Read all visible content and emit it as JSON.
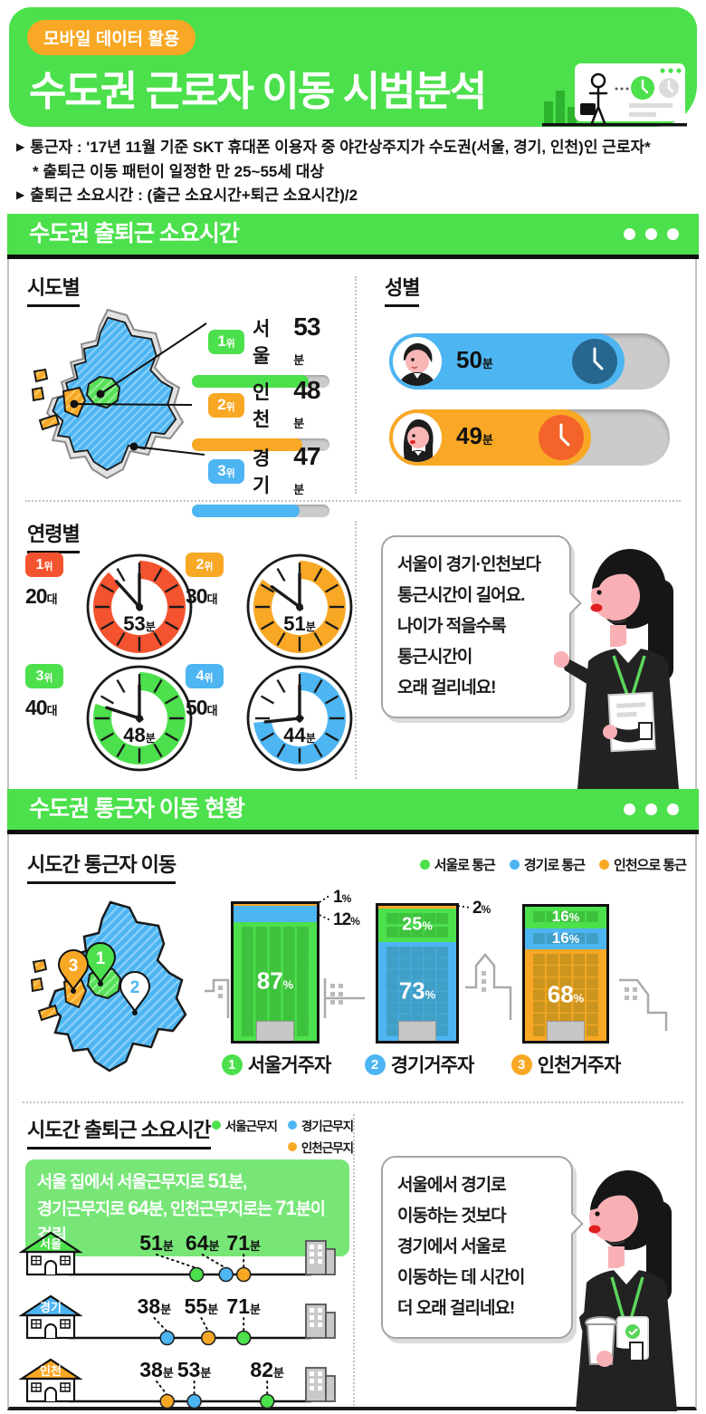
{
  "colors": {
    "green": "#4ce04c",
    "green_light": "#77e677",
    "blue": "#4db5f2",
    "orange": "#f8a825",
    "red": "#f4532f",
    "navy": "#27668f",
    "clock_orange": "#f4632a",
    "track": "#cbcbcb",
    "white": "#ffffff"
  },
  "banner": {
    "tag": "모바일 데이터 활용",
    "title": "수도권 근로자 이동 시범분석"
  },
  "notes": [
    {
      "marker": "▶",
      "text": "통근자 : '17년 11월 기준 SKT 휴대폰 이용자 중 야간상주지가 수도권(서울, 경기, 인천)인 근로자*"
    },
    {
      "marker": "",
      "text": "* 출퇴근 이동 패턴이 일정한 만 25~55세 대상"
    },
    {
      "marker": "▶",
      "text": "출퇴근 소요시간 : (출근 소요시간+퇴근 소요시간)/2"
    }
  ],
  "section1": {
    "header": "수도권 출퇴근 소요시간",
    "sido": {
      "title": "시도별",
      "items": [
        {
          "rank": "1",
          "suffix": "위",
          "name": "서울",
          "value": "53",
          "unit": "분",
          "color": "green",
          "fill": 85
        },
        {
          "rank": "2",
          "suffix": "위",
          "name": "인천",
          "value": "48",
          "unit": "분",
          "color": "orange",
          "fill": 80
        },
        {
          "rank": "3",
          "suffix": "위",
          "name": "경기",
          "value": "47",
          "unit": "분",
          "color": "blue",
          "fill": 78
        }
      ]
    },
    "gender": {
      "title": "성별",
      "items": [
        {
          "sex": "male",
          "value": "50",
          "unit": "분",
          "color": "blue",
          "clock": "navy",
          "fill": 84
        },
        {
          "sex": "female",
          "value": "49",
          "unit": "분",
          "color": "orange",
          "clock": "clock_orange",
          "fill": 72
        }
      ]
    },
    "age": {
      "title": "연령별",
      "items": [
        {
          "rank": "1",
          "suffix": "위",
          "group": "20",
          "group_suffix": "대",
          "minutes": 53,
          "unit": "분",
          "color": "red"
        },
        {
          "rank": "2",
          "suffix": "위",
          "group": "30",
          "group_suffix": "대",
          "minutes": 51,
          "unit": "분",
          "color": "orange"
        },
        {
          "rank": "3",
          "suffix": "위",
          "group": "40",
          "group_suffix": "대",
          "minutes": 48,
          "unit": "분",
          "color": "green"
        },
        {
          "rank": "4",
          "suffix": "위",
          "group": "50",
          "group_suffix": "대",
          "minutes": 44,
          "unit": "분",
          "color": "blue"
        }
      ]
    },
    "speech": [
      "서울이 경기·인천보다",
      "통근시간이 길어요.",
      "나이가 적을수록",
      "통근시간이",
      "오래 걸리네요!"
    ]
  },
  "section2": {
    "header": "수도권 통근자 이동 현황",
    "flows": {
      "title": "시도간 통근자 이동",
      "legend": [
        {
          "label": "서울로 통근",
          "color": "green"
        },
        {
          "label": "경기로 통근",
          "color": "blue"
        },
        {
          "label": "인천으로 통근",
          "color": "orange"
        }
      ],
      "map_pins": [
        {
          "num": "1",
          "color": "green",
          "tip": [
            84,
            96
          ]
        },
        {
          "num": "3",
          "color": "orange",
          "tip": [
            54,
            104
          ]
        },
        {
          "num": "2",
          "color": "white",
          "tip": [
            122,
            128
          ]
        }
      ],
      "buildings": [
        {
          "num": "1",
          "name": "서울거주자",
          "color": "green",
          "callouts": [
            {
              "label": "1",
              "unit": "%"
            },
            {
              "label": "12",
              "unit": "%"
            }
          ],
          "segments": [
            {
              "pct": 1,
              "color": "orange"
            },
            {
              "pct": 12,
              "color": "blue"
            },
            {
              "pct": 87,
              "color": "green",
              "label": "87",
              "unit": "%"
            }
          ]
        },
        {
          "num": "2",
          "name": "경기거주자",
          "color": "blue",
          "callouts": [
            {
              "label": "2",
              "unit": "%"
            }
          ],
          "segments": [
            {
              "pct": 2,
              "color": "orange"
            },
            {
              "pct": 25,
              "color": "green",
              "label": "25",
              "unit": "%"
            },
            {
              "pct": 73,
              "color": "blue",
              "label": "73",
              "unit": "%"
            }
          ]
        },
        {
          "num": "3",
          "name": "인천거주자",
          "color": "orange",
          "callouts": [],
          "segments": [
            {
              "pct": 16,
              "color": "green",
              "label": "16",
              "unit": "%"
            },
            {
              "pct": 16,
              "color": "blue",
              "label": "16",
              "unit": "%"
            },
            {
              "pct": 68,
              "color": "orange",
              "label": "68",
              "unit": "%"
            }
          ]
        }
      ]
    },
    "routes": {
      "title": "시도간 출퇴근 소요시간",
      "legend": [
        {
          "label": "서울근무지",
          "color": "green"
        },
        {
          "label": "경기근무지",
          "color": "blue"
        },
        {
          "label": "인천근무지",
          "color": "orange"
        }
      ],
      "callout": [
        {
          "text": "서울 집에서 서울근무지로 "
        },
        {
          "text": "51",
          "big": true
        },
        {
          "text": "분,",
          "br": true
        },
        {
          "text": "경기근무지로 "
        },
        {
          "text": "64",
          "big": true
        },
        {
          "text": "분, 인천근무지로는 "
        },
        {
          "text": "71",
          "big": true
        },
        {
          "text": "분이 걸림"
        }
      ],
      "rows": [
        {
          "origin": "서울",
          "color": "green",
          "stops": [
            {
              "value": "51",
              "unit": "분",
              "color": "green",
              "x": 0.52,
              "lx": 0.35
            },
            {
              "value": "64",
              "unit": "분",
              "color": "blue",
              "x": 0.645,
              "lx": 0.545
            },
            {
              "value": "71",
              "unit": "분",
              "color": "orange",
              "x": 0.72,
              "lx": 0.72
            }
          ]
        },
        {
          "origin": "경기",
          "color": "blue",
          "stops": [
            {
              "value": "38",
              "unit": "분",
              "color": "blue",
              "x": 0.395,
              "lx": 0.34
            },
            {
              "value": "55",
              "unit": "분",
              "color": "orange",
              "x": 0.57,
              "lx": 0.54
            },
            {
              "value": "71",
              "unit": "분",
              "color": "green",
              "x": 0.72,
              "lx": 0.72
            }
          ]
        },
        {
          "origin": "인천",
          "color": "orange",
          "stops": [
            {
              "value": "38",
              "unit": "분",
              "color": "orange",
              "x": 0.395,
              "lx": 0.35
            },
            {
              "value": "53",
              "unit": "분",
              "color": "blue",
              "x": 0.51,
              "lx": 0.51
            },
            {
              "value": "82",
              "unit": "분",
              "color": "green",
              "x": 0.82,
              "lx": 0.82
            }
          ]
        }
      ]
    },
    "speech": [
      "서울에서 경기로",
      "이동하는 것보다",
      "경기에서 서울로",
      "이동하는 데 시간이",
      "더 오래 걸리네요!"
    ]
  },
  "chart_data": [
    {
      "type": "bar",
      "title": "시도별 출퇴근 소요시간",
      "categories": [
        "서울",
        "인천",
        "경기"
      ],
      "values": [
        53,
        48,
        47
      ],
      "unit": "분",
      "ranks": [
        "1위",
        "2위",
        "3위"
      ]
    },
    {
      "type": "bar",
      "title": "성별 출퇴근 소요시간",
      "categories": [
        "male",
        "female"
      ],
      "values": [
        50,
        49
      ],
      "unit": "분"
    },
    {
      "type": "bar",
      "title": "연령별 출퇴근 소요시간",
      "categories": [
        "20대",
        "30대",
        "40대",
        "50대"
      ],
      "values": [
        53,
        51,
        48,
        44
      ],
      "unit": "분",
      "ranks": [
        "1위",
        "2위",
        "3위",
        "4위"
      ]
    },
    {
      "type": "bar",
      "stacked": true,
      "title": "시도간 통근자 이동",
      "categories": [
        "서울거주자",
        "경기거주자",
        "인천거주자"
      ],
      "series": [
        {
          "name": "서울로 통근",
          "values": [
            87,
            25,
            16
          ]
        },
        {
          "name": "경기로 통근",
          "values": [
            12,
            73,
            16
          ]
        },
        {
          "name": "인천으로 통근",
          "values": [
            1,
            2,
            68
          ]
        }
      ],
      "unit": "%"
    },
    {
      "type": "table",
      "title": "시도간 출퇴근 소요시간",
      "columns": [
        "서울근무지",
        "경기근무지",
        "인천근무지"
      ],
      "rows": [
        {
          "origin": "서울",
          "values": [
            51,
            64,
            71
          ]
        },
        {
          "origin": "경기",
          "values": [
            71,
            38,
            55
          ]
        },
        {
          "origin": "인천",
          "values": [
            82,
            53,
            38
          ]
        }
      ],
      "unit": "분"
    }
  ]
}
